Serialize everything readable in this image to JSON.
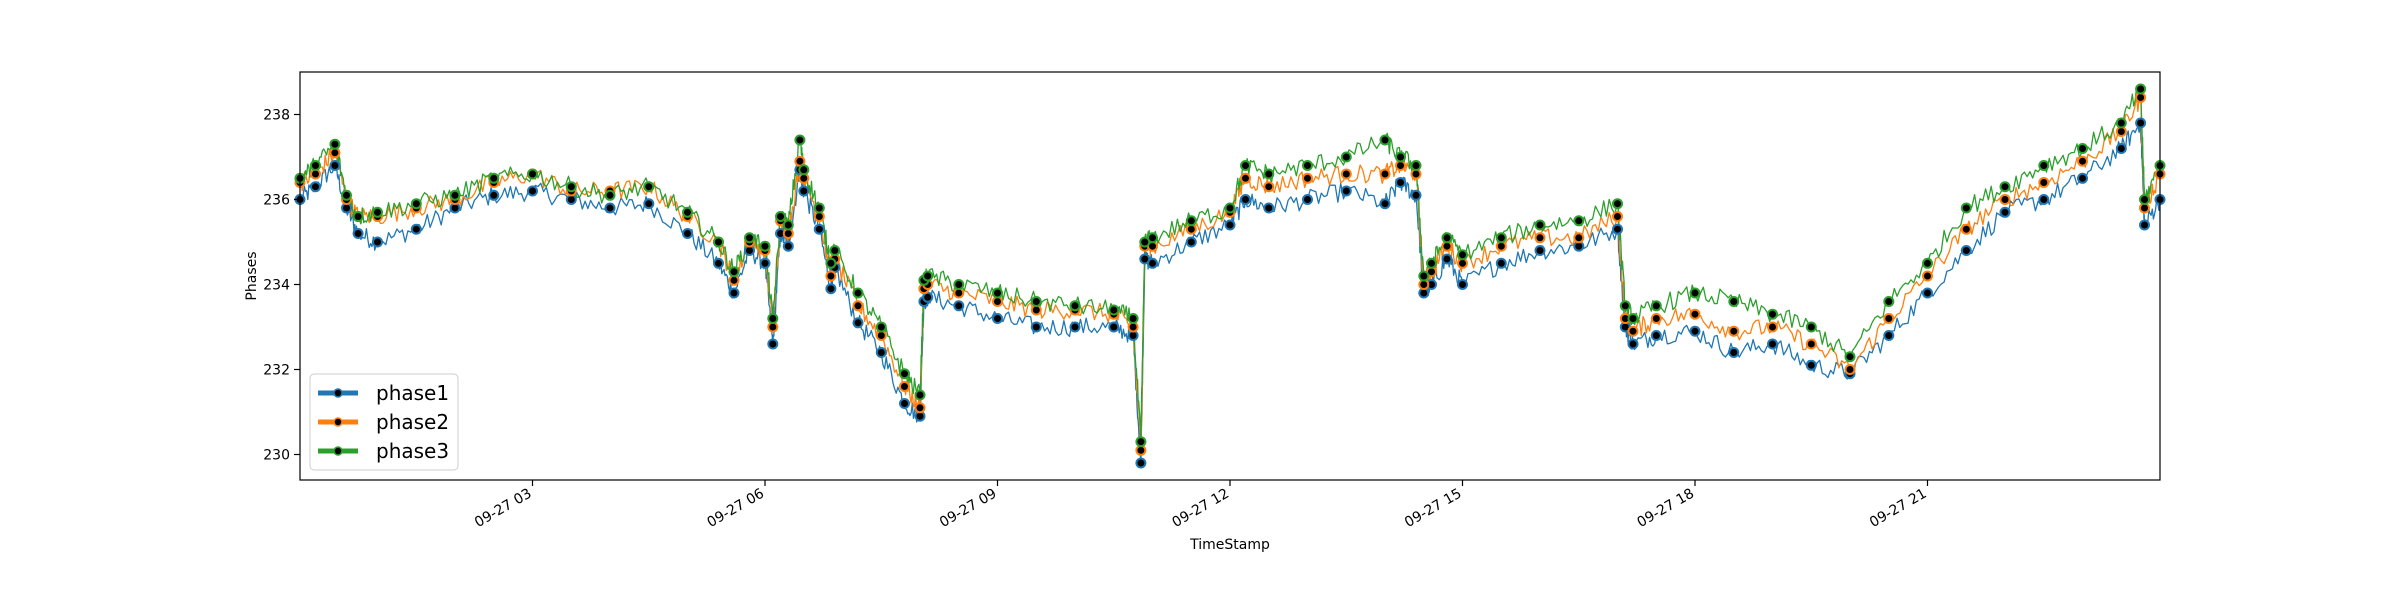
{
  "chart_data": {
    "type": "line",
    "title": "",
    "xlabel": "TimeStamp",
    "ylabel": "Phases",
    "x_range_hours": [
      0,
      24
    ],
    "ylim": [
      229.4,
      239.0
    ],
    "x_ticks": [
      {
        "hour": 3,
        "label": "09-27 03"
      },
      {
        "hour": 6,
        "label": "09-27 06"
      },
      {
        "hour": 9,
        "label": "09-27 09"
      },
      {
        "hour": 12,
        "label": "09-27 12"
      },
      {
        "hour": 15,
        "label": "09-27 15"
      },
      {
        "hour": 18,
        "label": "09-27 18"
      },
      {
        "hour": 21,
        "label": "09-27 21"
      }
    ],
    "y_ticks": [
      {
        "value": 230,
        "label": "230"
      },
      {
        "value": 232,
        "label": "232"
      },
      {
        "value": 234,
        "label": "234"
      },
      {
        "value": 236,
        "label": "236"
      },
      {
        "value": 238,
        "label": "238"
      }
    ],
    "grid": false,
    "legend_position": "lower-left",
    "x_hours": [
      0,
      0.2,
      0.45,
      0.6,
      0.75,
      1.0,
      1.5,
      2.0,
      2.5,
      3.0,
      3.5,
      4.0,
      4.5,
      5.0,
      5.4,
      5.6,
      5.8,
      6.0,
      6.1,
      6.2,
      6.3,
      6.45,
      6.5,
      6.7,
      6.85,
      6.9,
      7.2,
      7.5,
      7.8,
      8.0,
      8.05,
      8.1,
      8.5,
      9.0,
      9.5,
      10.0,
      10.5,
      10.75,
      10.85,
      10.9,
      11.0,
      11.5,
      12.0,
      12.2,
      12.5,
      13.0,
      13.5,
      14.0,
      14.2,
      14.4,
      14.5,
      14.6,
      14.8,
      15.0,
      15.5,
      16.0,
      16.5,
      17.0,
      17.1,
      17.2,
      17.5,
      18.0,
      18.5,
      19.0,
      19.5,
      20.0,
      20.5,
      21.0,
      21.5,
      22.0,
      22.5,
      23.0,
      23.5,
      23.75,
      23.8,
      24.0
    ],
    "series": [
      {
        "name": "phase1",
        "color": "#1f77b4",
        "values": [
          236.0,
          236.3,
          236.8,
          235.8,
          235.2,
          235.0,
          235.3,
          235.8,
          236.1,
          236.2,
          236.0,
          235.8,
          235.9,
          235.2,
          234.5,
          233.8,
          234.8,
          234.5,
          232.6,
          235.2,
          234.9,
          236.7,
          236.2,
          235.3,
          233.9,
          234.4,
          233.1,
          232.4,
          231.2,
          230.9,
          233.6,
          233.7,
          233.5,
          233.2,
          233.0,
          233.0,
          233.0,
          232.8,
          229.8,
          234.6,
          234.5,
          235.0,
          235.4,
          236.0,
          235.8,
          236.0,
          236.2,
          235.9,
          236.4,
          236.1,
          233.8,
          234.0,
          234.6,
          234.0,
          234.5,
          234.8,
          234.9,
          235.3,
          233.0,
          232.6,
          232.8,
          232.9,
          232.4,
          232.6,
          232.1,
          231.9,
          232.8,
          233.8,
          234.8,
          235.7,
          236.0,
          236.5,
          237.2,
          237.8,
          235.4,
          236.0
        ]
      },
      {
        "name": "phase2",
        "color": "#ff7f0e",
        "values": [
          236.4,
          236.6,
          237.1,
          236.0,
          235.6,
          235.6,
          235.8,
          236.0,
          236.4,
          236.6,
          236.2,
          236.2,
          236.3,
          235.6,
          235.0,
          234.1,
          235.0,
          234.8,
          233.0,
          235.5,
          235.2,
          236.9,
          236.5,
          235.6,
          234.2,
          234.6,
          233.5,
          232.8,
          231.6,
          231.1,
          233.9,
          234.0,
          233.8,
          233.6,
          233.4,
          233.4,
          233.3,
          233.0,
          230.1,
          234.9,
          234.9,
          235.3,
          235.7,
          236.5,
          236.3,
          236.5,
          236.6,
          236.6,
          236.8,
          236.6,
          234.0,
          234.3,
          234.9,
          234.5,
          234.9,
          235.1,
          235.1,
          235.6,
          233.2,
          232.9,
          233.2,
          233.3,
          232.9,
          233.0,
          232.6,
          232.0,
          233.2,
          234.2,
          235.3,
          236.0,
          236.4,
          236.9,
          237.6,
          238.4,
          235.8,
          236.6
        ]
      },
      {
        "name": "phase3",
        "color": "#2ca02c",
        "values": [
          236.5,
          236.8,
          237.3,
          236.1,
          235.6,
          235.7,
          235.9,
          236.1,
          236.5,
          236.6,
          236.3,
          236.1,
          236.3,
          235.7,
          235.0,
          234.3,
          235.1,
          234.9,
          233.2,
          235.6,
          235.4,
          237.4,
          236.7,
          235.8,
          234.5,
          234.8,
          233.8,
          233.0,
          231.9,
          231.4,
          234.1,
          234.2,
          234.0,
          233.8,
          233.6,
          233.5,
          233.4,
          233.2,
          230.3,
          235.0,
          235.1,
          235.5,
          235.8,
          236.8,
          236.6,
          236.8,
          237.0,
          237.4,
          237.0,
          236.8,
          234.2,
          234.5,
          235.1,
          234.7,
          235.1,
          235.4,
          235.5,
          235.9,
          233.5,
          233.2,
          233.5,
          233.8,
          233.6,
          233.3,
          233.0,
          232.3,
          233.6,
          234.5,
          235.8,
          236.3,
          236.8,
          237.2,
          237.8,
          238.6,
          236.0,
          236.8
        ]
      }
    ]
  }
}
